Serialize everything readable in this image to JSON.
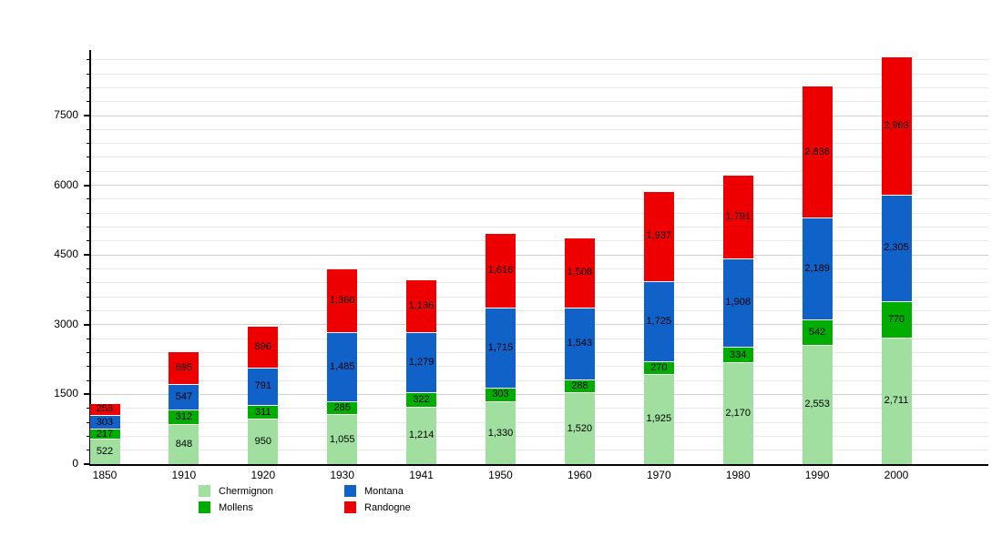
{
  "chart_data": {
    "type": "bar",
    "stacked": true,
    "title": "",
    "xlabel": "",
    "ylabel": "",
    "categories": [
      "1850",
      "1910",
      "1920",
      "1930",
      "1941",
      "1950",
      "1960",
      "1970",
      "1980",
      "1990",
      "2000"
    ],
    "series": [
      {
        "name": "Chermignon",
        "color": "#a0dfa0",
        "values": [
          522,
          848,
          950,
          1055,
          1214,
          1330,
          1520,
          1925,
          2170,
          2553,
          2711
        ]
      },
      {
        "name": "Mollens",
        "color": "#00ad00",
        "values": [
          217,
          312,
          311,
          285,
          322,
          303,
          288,
          270,
          334,
          542,
          770
        ]
      },
      {
        "name": "Montana",
        "color": "#1062c8",
        "values": [
          303,
          547,
          791,
          1485,
          1279,
          1715,
          1543,
          1725,
          1908,
          2189,
          2305
        ]
      },
      {
        "name": "Randogne",
        "color": "#ee0000",
        "values": [
          253,
          695,
          896,
          1360,
          1136,
          1616,
          1508,
          1937,
          1791,
          2838,
          2963
        ]
      }
    ],
    "ylim": [
      0,
      8910
    ],
    "yticks": [
      0,
      1500,
      3000,
      4500,
      6000,
      7500
    ],
    "grid": {
      "on": true,
      "minor_step": 300,
      "major_step": 1500,
      "max": 8700,
      "minor_color": "#e8e8e8",
      "major_color": "#cfcfcf"
    },
    "separator_color": "#fdfdf2",
    "legend": {
      "position": "bottom",
      "columns": [
        [
          "Chermignon",
          "Mollens"
        ],
        [
          "Montana",
          "Randogne"
        ]
      ]
    }
  }
}
